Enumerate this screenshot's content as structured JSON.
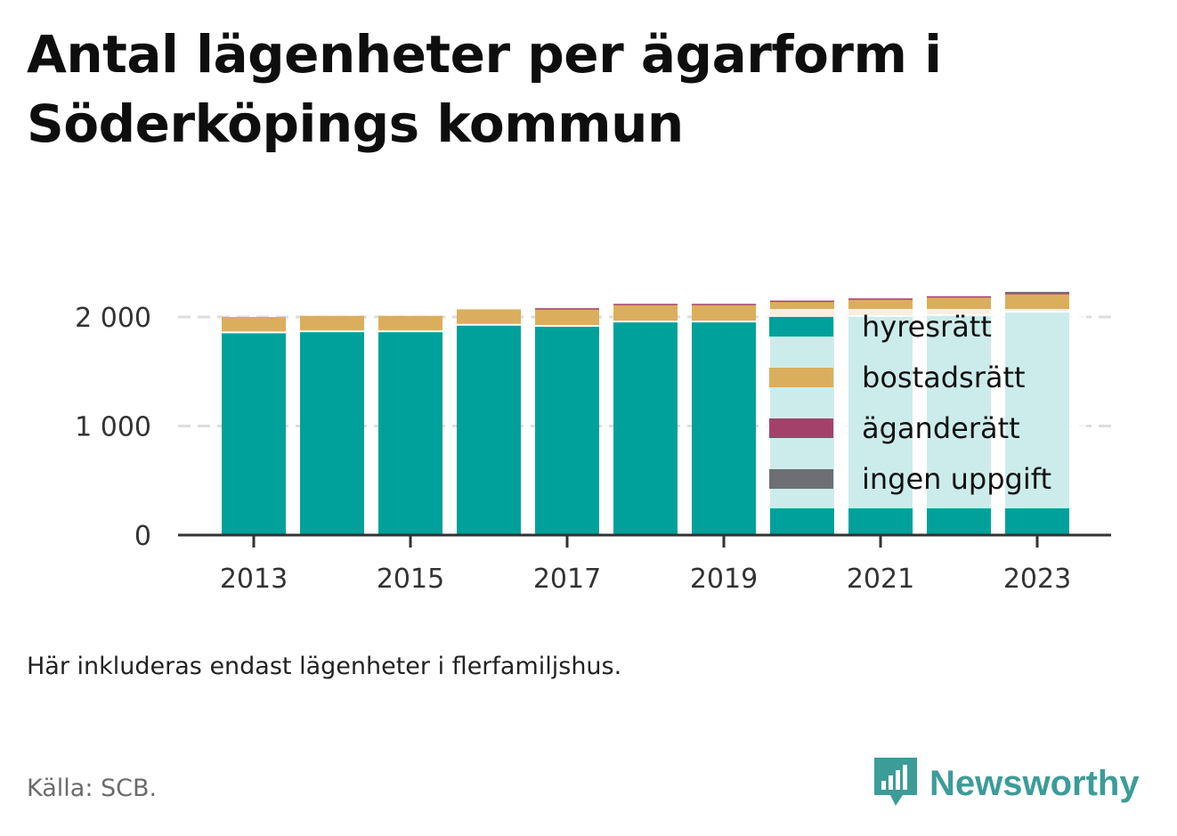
{
  "title": "Antal lägenheter per ägarform i Söderköpings kommun",
  "note": "Här inkluderas endast lägenheter i flerfamiljshus.",
  "source": "Källa: SCB.",
  "brand": {
    "name": "Newsworthy",
    "icon": "newsworthy-logo-icon"
  },
  "colors": {
    "hyresratt": "#00a19a",
    "bostadsratt": "#dbae5d",
    "aganderatt": "#a3416b",
    "ingen_uppgift": "#6e6e75",
    "grid": "#dddddd",
    "axis": "#333333"
  },
  "chart_data": {
    "type": "bar",
    "stacked": true,
    "categories": [
      "2013",
      "2014",
      "2015",
      "2016",
      "2017",
      "2018",
      "2019",
      "2020",
      "2021",
      "2022",
      "2023"
    ],
    "x_tick_labels": [
      "2013",
      "2015",
      "2017",
      "2019",
      "2021",
      "2023"
    ],
    "series": [
      {
        "name": "hyresrätt",
        "color": "#00a19a",
        "values": [
          1850,
          1860,
          1860,
          1920,
          1910,
          1950,
          1950,
          1980,
          2000,
          2010,
          2040
        ]
      },
      {
        "name": "bostadsrätt",
        "color": "#dbae5d",
        "values": [
          150,
          150,
          150,
          150,
          160,
          160,
          160,
          160,
          160,
          170,
          170
        ]
      },
      {
        "name": "äganderätt",
        "color": "#a3416b",
        "values": [
          0,
          0,
          0,
          0,
          10,
          10,
          10,
          10,
          10,
          10,
          10
        ]
      },
      {
        "name": "ingen uppgift",
        "color": "#6e6e75",
        "values": [
          0,
          0,
          0,
          0,
          0,
          0,
          0,
          0,
          0,
          0,
          10
        ]
      }
    ],
    "y_ticks": [
      0,
      1000,
      2000
    ],
    "y_tick_labels": [
      "0",
      "1 000",
      "2 000"
    ],
    "ylim": [
      0,
      2300
    ],
    "grid": true,
    "legend_position": "right, overlaying last bars"
  }
}
